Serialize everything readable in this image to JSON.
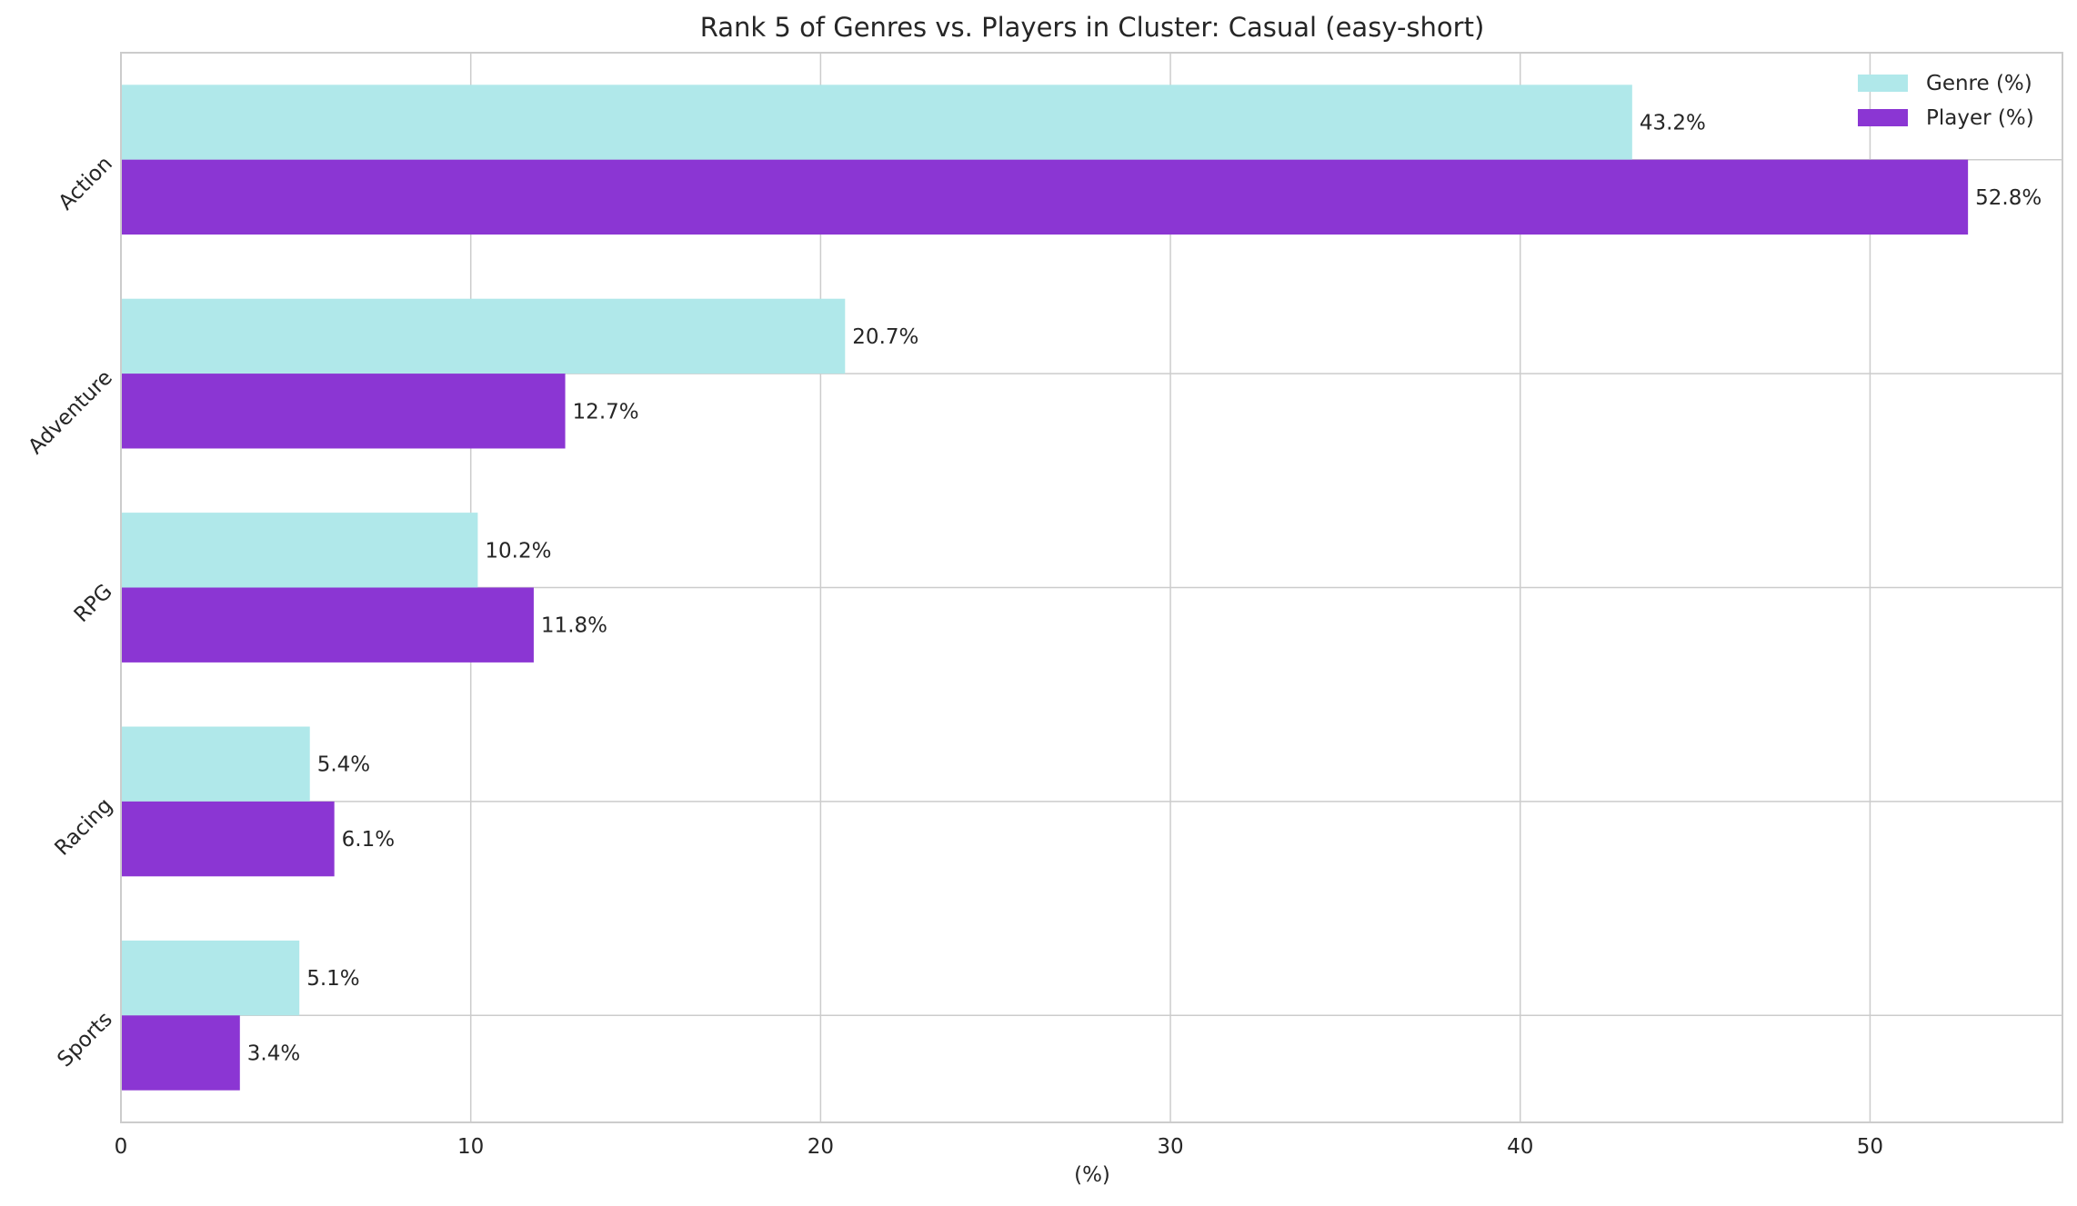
{
  "chart_data": {
    "type": "bar",
    "orientation": "horizontal",
    "title": "Rank 5 of Genres vs. Players in Cluster: Casual (easy-short)",
    "xlabel": "(%)",
    "ylabel": "",
    "categories": [
      "Action",
      "Adventure",
      "RPG",
      "Racing",
      "Sports"
    ],
    "series": [
      {
        "name": "Genre (%)",
        "color": "#b0e8ea",
        "values": [
          43.2,
          20.7,
          10.2,
          5.4,
          5.1
        ],
        "labels": [
          "43.2%",
          "20.7%",
          "10.2%",
          "5.4%",
          "5.1%"
        ]
      },
      {
        "name": "Player (%)",
        "color": "#8b36d3",
        "values": [
          52.8,
          12.7,
          11.8,
          6.1,
          3.4
        ],
        "labels": [
          "52.8%",
          "12.7%",
          "11.8%",
          "6.1%",
          "3.4%"
        ]
      }
    ],
    "xlim": [
      0,
      55.5
    ],
    "xticks": [
      0,
      10,
      20,
      30,
      40,
      50
    ],
    "grid": true,
    "legend_position": "top-right"
  }
}
